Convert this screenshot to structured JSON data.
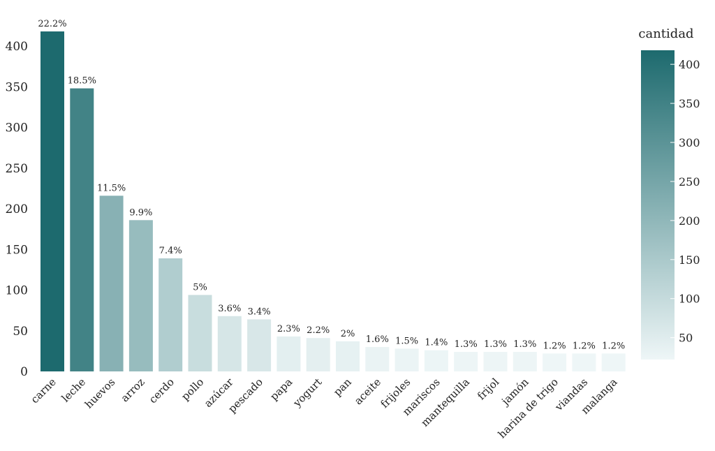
{
  "chart_data": {
    "type": "bar",
    "categories": [
      "carne",
      "leche",
      "huevos",
      "arroz",
      "cerdo",
      "pollo",
      "azúcar",
      "pescado",
      "papa",
      "yogurt",
      "pan",
      "aceite",
      "frijoles",
      "mariscos",
      "mantequilla",
      "frijol",
      "jamón",
      "harina de trigo",
      "viandas",
      "malanga"
    ],
    "values": [
      418,
      348,
      216,
      186,
      139,
      94,
      68,
      64,
      43,
      41,
      37,
      30,
      28,
      26,
      24,
      24,
      24,
      22,
      22,
      22
    ],
    "data_labels": [
      "22.2%",
      "18.5%",
      "11.5%",
      "9.9%",
      "7.4%",
      "5%",
      "3.6%",
      "3.4%",
      "2.3%",
      "2.2%",
      "2%",
      "1.6%",
      "1.5%",
      "1.4%",
      "1.3%",
      "1.3%",
      "1.3%",
      "1.2%",
      "1.2%",
      "1.2%"
    ],
    "ylim": [
      0,
      430
    ],
    "yticks": [
      0,
      50,
      100,
      150,
      200,
      250,
      300,
      350,
      400
    ],
    "grid": false,
    "colorscale": {
      "title": "cantidad",
      "min": 22,
      "max": 418,
      "low_color": "#eef6f7",
      "high_color": "#1d6a6e",
      "ticks": [
        50,
        100,
        150,
        200,
        250,
        300,
        350,
        400
      ],
      "top_tick_label": "400"
    }
  }
}
